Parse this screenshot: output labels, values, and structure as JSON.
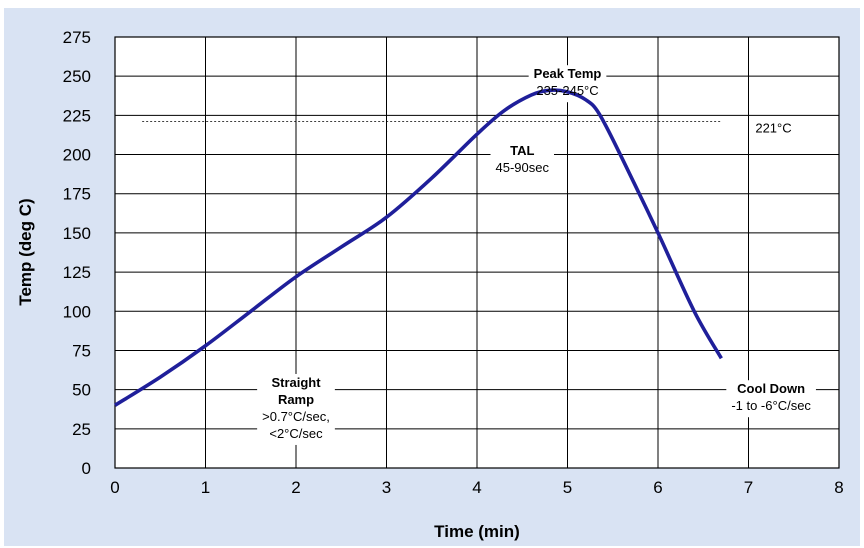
{
  "chart_data": {
    "type": "line",
    "title": "",
    "xlabel": "Time (min)",
    "ylabel": "Temp (deg C)",
    "xlim": [
      0,
      8
    ],
    "ylim": [
      0,
      275
    ],
    "xticks": [
      "0",
      "1",
      "2",
      "3",
      "4",
      "5",
      "6",
      "7",
      "8"
    ],
    "yticks": [
      "0",
      "25",
      "50",
      "75",
      "100",
      "125",
      "150",
      "175",
      "200",
      "225",
      "250",
      "275"
    ],
    "grid": true,
    "series": [
      {
        "color": "#1f1f9a",
        "x": [
          0,
          0.5,
          1,
          1.5,
          2,
          2.5,
          3,
          3.5,
          4,
          4.3,
          4.6,
          4.8,
          5.0,
          5.2,
          5.35,
          5.6,
          6.0,
          6.4,
          6.7
        ],
        "y": [
          40,
          58,
          78,
          100,
          122,
          141,
          160,
          185,
          213,
          228,
          238,
          241,
          240,
          235,
          226,
          198,
          150,
          100,
          70
        ]
      }
    ],
    "reference_line": {
      "y": 221,
      "x_range": [
        0.3,
        6.7
      ],
      "style": "dashed",
      "label": "221°C"
    },
    "annotations": [
      {
        "lines": [
          {
            "text": "Peak Temp",
            "bold": true
          },
          {
            "text": "235-245°C",
            "bold": false
          }
        ],
        "x": 5.0,
        "y": 257
      },
      {
        "lines": [
          {
            "text": "TAL",
            "bold": true
          },
          {
            "text": "45-90sec",
            "bold": false
          }
        ],
        "x": 4.5,
        "y": 208
      },
      {
        "lines": [
          {
            "text": "Straight",
            "bold": true
          },
          {
            "text": "Ramp",
            "bold": true
          },
          {
            "text": ">0.7°C/sec,",
            "bold": false
          },
          {
            "text": "<2°C/sec",
            "bold": false
          }
        ],
        "x": 2.0,
        "y": 60
      },
      {
        "lines": [
          {
            "text": "Cool Down",
            "bold": true
          },
          {
            "text": "-1 to -6°C/sec",
            "bold": false
          }
        ],
        "x": 7.25,
        "y": 56
      }
    ]
  }
}
